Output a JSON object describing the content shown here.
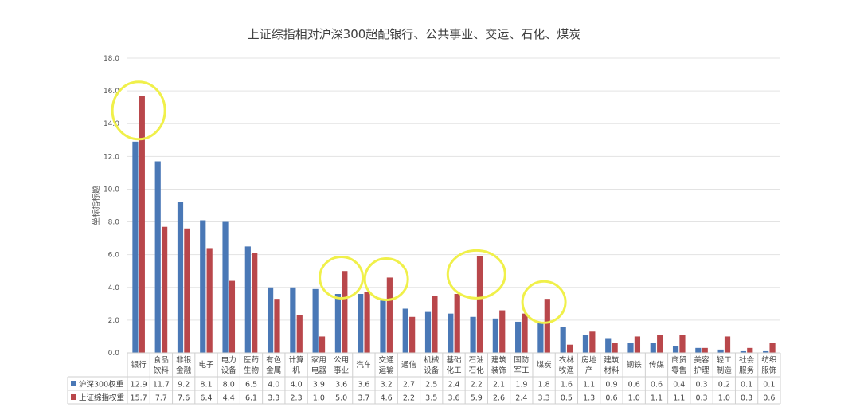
{
  "chart_data": {
    "type": "bar",
    "title": "上证综指相对沪深300超配银行、公共事业、交运、石化、煤炭",
    "ylabel": "坐标指标题",
    "ylim": [
      0,
      18
    ],
    "yticks": [
      "0.0",
      "2.0",
      "4.0",
      "6.0",
      "8.0",
      "10.0",
      "12.0",
      "14.0",
      "16.0",
      "18.0"
    ],
    "grid": true,
    "legend": "table-below",
    "categories": [
      [
        "银行"
      ],
      [
        "食品",
        "饮料"
      ],
      [
        "非银",
        "金融"
      ],
      [
        "电子"
      ],
      [
        "电力",
        "设备"
      ],
      [
        "医药",
        "生物"
      ],
      [
        "有色",
        "金属"
      ],
      [
        "计算",
        "机"
      ],
      [
        "家用",
        "电器"
      ],
      [
        "公用",
        "事业"
      ],
      [
        "汽车"
      ],
      [
        "交通",
        "运输"
      ],
      [
        "通信"
      ],
      [
        "机械",
        "设备"
      ],
      [
        "基础",
        "化工"
      ],
      [
        "石油",
        "石化"
      ],
      [
        "建筑",
        "装饰"
      ],
      [
        "国防",
        "军工"
      ],
      [
        "煤炭"
      ],
      [
        "农林",
        "牧渔"
      ],
      [
        "房地",
        "产"
      ],
      [
        "建筑",
        "材料"
      ],
      [
        "钢铁"
      ],
      [
        "传媒"
      ],
      [
        "商贸",
        "零售"
      ],
      [
        "美容",
        "护理"
      ],
      [
        "轻工",
        "制造"
      ],
      [
        "社会",
        "服务"
      ],
      [
        "纺织",
        "服饰"
      ]
    ],
    "series": [
      {
        "name": "沪深300权重",
        "color": "#4a78b6",
        "values": [
          12.9,
          11.7,
          9.2,
          8.1,
          8.0,
          6.5,
          4.0,
          4.0,
          3.9,
          3.6,
          3.6,
          3.2,
          2.7,
          2.5,
          2.4,
          2.2,
          2.1,
          1.9,
          1.8,
          1.6,
          1.1,
          0.9,
          0.6,
          0.6,
          0.4,
          0.3,
          0.2,
          0.1,
          0.1
        ]
      },
      {
        "name": "上证综指权重",
        "color": "#b9474b",
        "values": [
          15.7,
          7.7,
          7.6,
          6.4,
          4.4,
          6.1,
          3.3,
          2.3,
          1.0,
          5.0,
          3.7,
          4.6,
          2.2,
          3.5,
          3.6,
          5.9,
          2.6,
          2.4,
          3.3,
          0.5,
          1.3,
          0.6,
          1.0,
          1.1,
          1.1,
          0.3,
          1.0,
          0.3,
          0.6
        ]
      }
    ],
    "highlight_color": "#f0f04a",
    "highlights": [
      {
        "category": "银行",
        "center_value": 14.8
      },
      {
        "category": "公用事业",
        "center_value": 4.6
      },
      {
        "category": "交通运输",
        "center_value": 4.5
      },
      {
        "category": "石油石化",
        "center_value": 4.8
      },
      {
        "category": "煤炭",
        "center_value": 3.1
      }
    ]
  }
}
